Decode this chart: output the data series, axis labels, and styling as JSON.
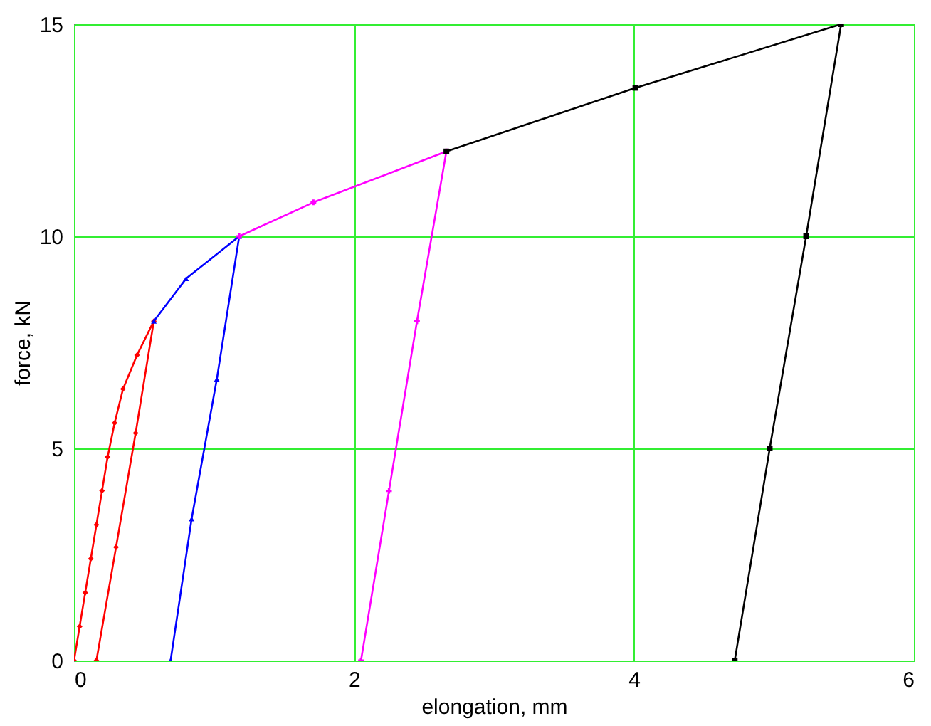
{
  "chart_data": {
    "type": "line",
    "xlabel": "elongation, mm",
    "ylabel": "force, kN",
    "xlim": [
      0,
      6
    ],
    "xticks": [
      0,
      2,
      4,
      6
    ],
    "ylim": [
      0,
      15
    ],
    "yticks": [
      0,
      5,
      10,
      15
    ],
    "grid": true,
    "legend": false,
    "line_style": "solid",
    "series": [
      {
        "color": "#ff0000",
        "marker": "diamond",
        "x": [
          0,
          0.04,
          0.08,
          0.12,
          0.16,
          0.2,
          0.24,
          0.29,
          0.35,
          0.45,
          0.57,
          0.44,
          0.3,
          0.16
        ],
        "values": [
          0,
          0.8,
          1.6,
          2.4,
          3.2,
          4.0,
          4.8,
          5.6,
          6.4,
          7.2,
          8.0,
          5.36,
          2.67,
          0
        ]
      },
      {
        "color": "#0000ff",
        "marker": "triangle",
        "x": [
          0.57,
          0.8,
          1.18,
          1.02,
          0.84,
          0.69
        ],
        "values": [
          8.0,
          9.0,
          10.0,
          6.63,
          3.34,
          0
        ]
      },
      {
        "color": "#ff00ff",
        "marker": "cross",
        "x": [
          1.18,
          1.71,
          2.66,
          2.45,
          2.25,
          2.05
        ],
        "values": [
          10.0,
          10.8,
          12.0,
          8.0,
          4.0,
          0
        ]
      },
      {
        "color": "#000000",
        "marker": "square",
        "x": [
          2.66,
          4.01,
          5.48,
          5.23,
          4.97,
          4.72
        ],
        "values": [
          12.0,
          13.5,
          15.0,
          10.0,
          5.0,
          0
        ]
      }
    ]
  }
}
